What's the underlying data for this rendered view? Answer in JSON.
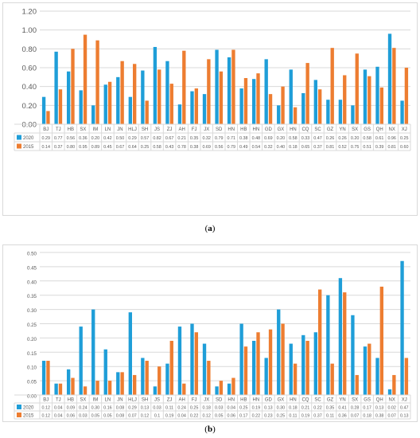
{
  "charts": [
    {
      "caption_open": "(",
      "caption_letter": "a",
      "caption_close": ")",
      "chart_data": {
        "type": "bar",
        "title": "",
        "xlabel": "",
        "ylabel": "",
        "ylim": [
          0,
          1.2
        ],
        "yticks": [
          "0.00",
          "0.20",
          "0.40",
          "0.60",
          "0.80",
          "1.00",
          "1.20"
        ],
        "grid": true,
        "legend": "table-below",
        "categories": [
          "BJ",
          "TJ",
          "HB",
          "SX",
          "IM",
          "LN",
          "JN",
          "HLJ",
          "SH",
          "JS",
          "ZJ",
          "AH",
          "FJ",
          "JX",
          "SD",
          "HN",
          "HB",
          "HN",
          "GD",
          "GX",
          "HN",
          "CQ",
          "SC",
          "GZ",
          "YN",
          "SX",
          "GS",
          "QH",
          "NX",
          "XJ"
        ],
        "series": [
          {
            "name": "2020",
            "color": "#1f9ed8",
            "values": [
              0.29,
              0.77,
              0.56,
              0.36,
              0.2,
              0.42,
              0.5,
              0.29,
              0.57,
              0.82,
              0.67,
              0.21,
              0.35,
              0.32,
              0.79,
              0.71,
              0.38,
              0.48,
              0.69,
              0.2,
              0.58,
              0.33,
              0.47,
              0.26,
              0.26,
              0.2,
              0.58,
              0.61,
              0.96,
              0.25
            ],
            "labels": [
              "0.29",
              "0.77",
              "0.56",
              "0.36",
              "0.20",
              "0.42",
              "0.50",
              "0.29",
              "0.57",
              "0.82",
              "0.67",
              "0.21",
              "0.35",
              "0.32",
              "0.79",
              "0.71",
              "0.38",
              "0.48",
              "0.69",
              "0.20",
              "0.58",
              "0.33",
              "0.47",
              "0.26",
              "0.26",
              "0.20",
              "0.58",
              "0.61",
              "0.96",
              "0.25"
            ]
          },
          {
            "name": "2015",
            "color": "#ed7d31",
            "values": [
              0.14,
              0.37,
              0.8,
              0.95,
              0.89,
              0.45,
              0.67,
              0.64,
              0.25,
              0.58,
              0.43,
              0.78,
              0.38,
              0.69,
              0.56,
              0.79,
              0.49,
              0.54,
              0.32,
              0.4,
              0.18,
              0.65,
              0.37,
              0.81,
              0.52,
              0.75,
              0.51,
              0.39,
              0.81,
              0.6
            ],
            "labels": [
              "0.14",
              "0.37",
              "0.80",
              "0.95",
              "0.89",
              "0.45",
              "0.67",
              "0.64",
              "0.25",
              "0.58",
              "0.43",
              "0.78",
              "0.38",
              "0.69",
              "0.56",
              "0.79",
              "0.49",
              "0.54",
              "0.32",
              "0.40",
              "0.18",
              "0.65",
              "0.37",
              "0.81",
              "0.52",
              "0.75",
              "0.51",
              "0.39",
              "0.81",
              "0.60"
            ]
          }
        ]
      }
    },
    {
      "caption_open": "(",
      "caption_letter": "b",
      "caption_close": ")",
      "chart_data": {
        "type": "bar",
        "title": "",
        "xlabel": "",
        "ylabel": "",
        "ylim": [
          0,
          0.5
        ],
        "yticks": [
          "0.00",
          "0.05",
          "0.10",
          "0.15",
          "0.20",
          "0.25",
          "0.30",
          "0.35",
          "0.40",
          "0.45",
          "0.50"
        ],
        "grid": true,
        "legend": "table-below",
        "categories": [
          "BJ",
          "TJ",
          "HB",
          "SX",
          "IM",
          "LN",
          "JN",
          "HLJ",
          "SH",
          "JS",
          "ZJ",
          "AH",
          "FJ",
          "JX",
          "SD",
          "HN",
          "HB",
          "HN",
          "GD",
          "GX",
          "HN",
          "CQ",
          "SC",
          "GZ",
          "YN",
          "SX",
          "GS",
          "QH",
          "NX",
          "XJ"
        ],
        "series": [
          {
            "name": "2020",
            "color": "#1f9ed8",
            "values": [
              0.12,
              0.04,
              0.09,
              0.24,
              0.3,
              0.16,
              0.08,
              0.29,
              0.13,
              0.03,
              0.11,
              0.24,
              0.25,
              0.18,
              0.03,
              0.04,
              0.25,
              0.19,
              0.13,
              0.3,
              0.18,
              0.21,
              0.22,
              0.35,
              0.41,
              0.28,
              0.17,
              0.13,
              0.02,
              0.47
            ],
            "labels": [
              "0.12",
              "0.04",
              "0.09",
              "0.24",
              "0.30",
              "0.16",
              "0.08",
              "0.29",
              "0.13",
              "0.03",
              "0.11",
              "0.24",
              "0.25",
              "0.18",
              "0.03",
              "0.04",
              "0.25",
              "0.19",
              "0.13",
              "0.30",
              "0.18",
              "0.21",
              "0.22",
              "0.35",
              "0.41",
              "0.28",
              "0.17",
              "0.13",
              "0.02",
              "0.47"
            ]
          },
          {
            "name": "2015",
            "color": "#ed7d31",
            "values": [
              0.12,
              0.04,
              0.06,
              0.03,
              0.05,
              0.05,
              0.08,
              0.07,
              0.12,
              0.1,
              0.19,
              0.04,
              0.22,
              0.12,
              0.05,
              0.06,
              0.17,
              0.22,
              0.23,
              0.25,
              0.11,
              0.19,
              0.37,
              0.11,
              0.36,
              0.07,
              0.18,
              0.38,
              0.07,
              0.13
            ],
            "labels": [
              "0.12",
              "0.04",
              "0.06",
              "0.03",
              "0.05",
              "0.05",
              "0.08",
              "0.07",
              "0.12",
              "0.1",
              "0.19",
              "0.04",
              "0.22",
              "0.12",
              "0.05",
              "0.06",
              "0.17",
              "0.22",
              "0.23",
              "0.25",
              "0.11",
              "0.19",
              "0.37",
              "0.11",
              "0.36",
              "0.07",
              "0.18",
              "0.38",
              "0.07",
              "0.13"
            ]
          }
        ]
      }
    }
  ]
}
